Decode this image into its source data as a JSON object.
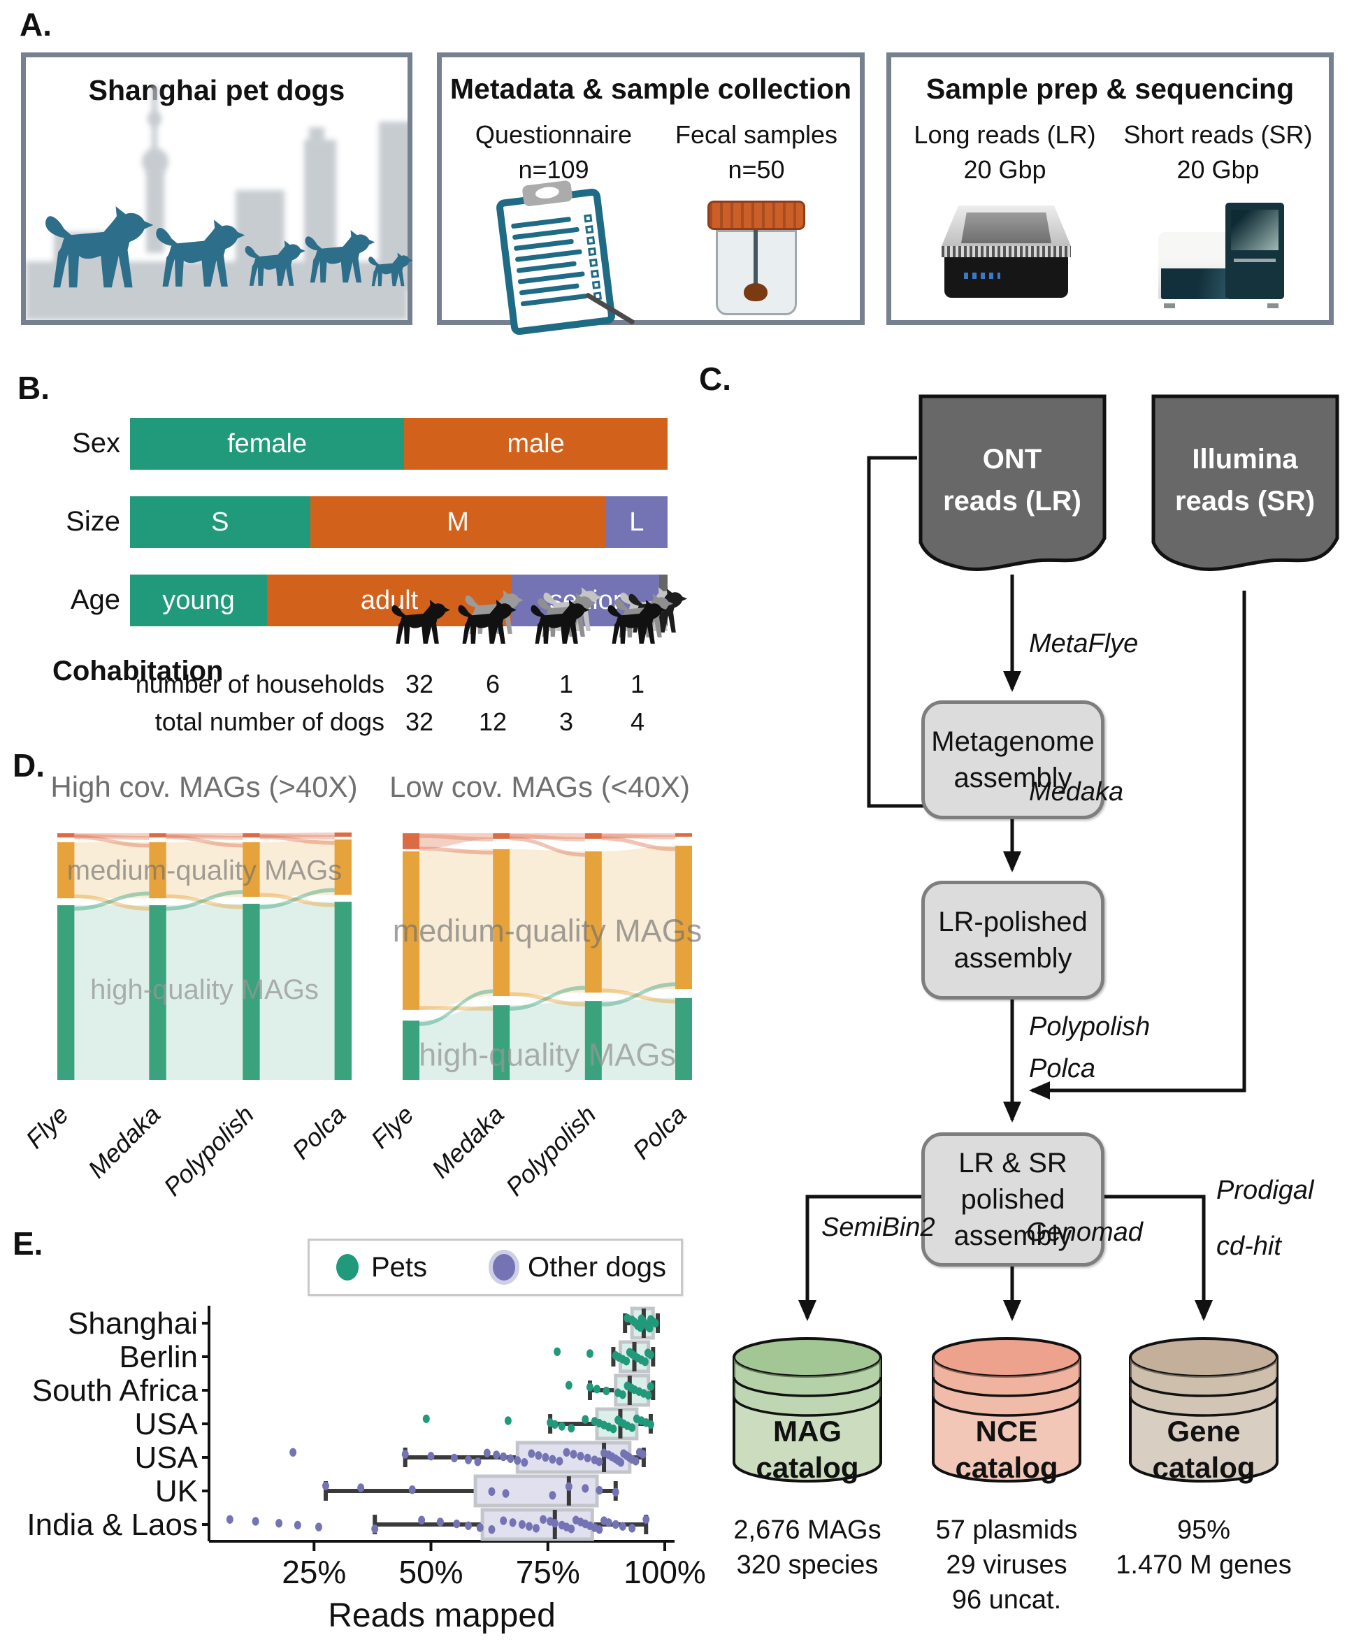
{
  "panel_labels": {
    "a": "A.",
    "b": "B.",
    "c": "C.",
    "d": "D.",
    "e": "E."
  },
  "colors": {
    "green": "#21997B",
    "orange": "#D2611B",
    "purple": "#7473B4",
    "darkgray": "#666666",
    "panel_border": "#76818F",
    "dog_teal": "#2D6E8A",
    "alluvial_gold": "#E7A33B",
    "alluvial_green": "#3AA27C",
    "alluvial_red": "#DC6A43",
    "box_border_gray": "#C2C6CA",
    "whisker_dark": "#3A3A3A",
    "flow_node_fill": "#DCDCDC",
    "doc_fill": "#686868"
  },
  "panelA": {
    "box1": {
      "title": "Shanghai pet dogs"
    },
    "box2": {
      "title": "Metadata & sample collection",
      "items": [
        {
          "label": "Questionnaire",
          "value": "n=109"
        },
        {
          "label": "Fecal samples",
          "value": "n=50"
        }
      ]
    },
    "box3": {
      "title": "Sample prep & sequencing",
      "items": [
        {
          "label": "Long reads (LR)",
          "value": "20 Gbp"
        },
        {
          "label": "Short reads (SR)",
          "value": "20 Gbp"
        }
      ]
    }
  },
  "panelB": {
    "cohabitation": {
      "title": "Cohabitation",
      "row1_label": "number of households",
      "row1_values": [
        "32",
        "6",
        "1",
        "1"
      ],
      "row2_label": "total number of dogs",
      "row2_values": [
        "32",
        "12",
        "3",
        "4"
      ]
    }
  },
  "panelC": {
    "input1": {
      "line1": "ONT",
      "line2": "reads (LR)"
    },
    "input2": {
      "line1": "Illumina",
      "line2": "reads (SR)"
    },
    "node1": {
      "line1": "Metagenome",
      "line2": "assembly"
    },
    "node2": {
      "line1": "LR-polished",
      "line2": "assembly"
    },
    "node3": {
      "line1": "LR & SR",
      "line2": "polished",
      "line3": "assembly"
    },
    "tool_metaflye": "MetaFlye",
    "tool_medaka": "Medaka",
    "tool_polypolish": "Polypolish",
    "tool_polca": "Polca",
    "tool_semibin": "SemiBin2",
    "tool_genomad": "Genomad",
    "tool_prodigal": "Prodigal",
    "tool_cdhit": "cd-hit",
    "catalogs": [
      {
        "line1": "MAG",
        "line2": "catalog",
        "stat1": "2,676 MAGs",
        "stat2": "320 species",
        "stat3": "",
        "body_color": "#CBDDBE",
        "top_color": "#A3C794"
      },
      {
        "line1": "NCE",
        "line2": "catalog",
        "stat1": "57 plasmids",
        "stat2": "29 viruses",
        "stat3": "96 uncat.",
        "body_color": "#F2C7B7",
        "top_color": "#ECA28C"
      },
      {
        "line1": "Gene",
        "line2": "catalog",
        "stat1": "95%",
        "stat2": "1.470 M genes",
        "stat3": "",
        "body_color": "#D9CEC2",
        "top_color": "#C4B09A"
      }
    ]
  },
  "chart_data": [
    {
      "type": "bar",
      "name": "dog-demographics",
      "orientation": "horizontal_stacked",
      "unit": "percent of dogs",
      "rows": [
        {
          "label": "Sex",
          "segments": [
            {
              "label": "female",
              "value": 51,
              "color_key": "green"
            },
            {
              "label": "male",
              "value": 49,
              "color_key": "orange"
            }
          ]
        },
        {
          "label": "Size",
          "segments": [
            {
              "label": "S",
              "value": 33.5,
              "color_key": "green"
            },
            {
              "label": "M",
              "value": 55,
              "color_key": "orange"
            },
            {
              "label": "L",
              "value": 11.5,
              "color_key": "purple"
            }
          ]
        },
        {
          "label": "Age",
          "segments": [
            {
              "label": "young",
              "value": 25.5,
              "color_key": "green"
            },
            {
              "label": "adult",
              "value": 45.5,
              "color_key": "orange"
            },
            {
              "label": "senior",
              "value": 27.5,
              "color_key": "purple"
            },
            {
              "label": "",
              "value": 1.5,
              "color_key": "darkgray"
            }
          ]
        }
      ]
    },
    {
      "type": "area",
      "name": "mag-quality-alluvial-high-coverage",
      "title": "High cov. MAGs (>40X)",
      "stages": [
        "Flye",
        "Medaka",
        "Polypolish",
        "Polca"
      ],
      "band_labels": {
        "medium": "medium-quality MAGs",
        "high": "high-quality MAGs"
      },
      "bands": {
        "failed": [
          [
            0.006,
            0.023
          ],
          [
            0.006,
            0.023
          ],
          [
            0.006,
            0.023
          ],
          [
            0.003,
            0.02
          ]
        ],
        "medium": [
          [
            0.042,
            0.268
          ],
          [
            0.042,
            0.268
          ],
          [
            0.042,
            0.262
          ],
          [
            0.031,
            0.254
          ]
        ],
        "high": [
          [
            0.296,
            1.0
          ],
          [
            0.296,
            1.0
          ],
          [
            0.29,
            1.0
          ],
          [
            0.282,
            1.0
          ]
        ]
      },
      "label_y": {
        "medium": 0.155,
        "high": 0.635
      },
      "label_font": 40
    },
    {
      "type": "area",
      "name": "mag-quality-alluvial-low-coverage",
      "title": "Low cov. MAGs (<40X)",
      "stages": [
        "Flye",
        "Medaka",
        "Polypolish",
        "Polca"
      ],
      "band_labels": {
        "medium": "medium-quality MAGs",
        "high": "high-quality MAGs"
      },
      "bands": {
        "failed": [
          [
            0.006,
            0.07
          ],
          [
            0.006,
            0.028
          ],
          [
            0.006,
            0.028
          ],
          [
            0.006,
            0.02
          ]
        ],
        "medium": [
          [
            0.079,
            0.718
          ],
          [
            0.07,
            0.662
          ],
          [
            0.079,
            0.648
          ],
          [
            0.056,
            0.634
          ]
        ],
        "high": [
          [
            0.761,
            1.0
          ],
          [
            0.699,
            1.0
          ],
          [
            0.682,
            1.0
          ],
          [
            0.67,
            1.0
          ]
        ]
      },
      "label_y": {
        "medium": 0.4,
        "high": 0.9
      },
      "label_font": 45
    },
    {
      "type": "scatter",
      "name": "reads-mapped-boxplot",
      "xlabel": "Reads mapped",
      "xlim": [
        0,
        105
      ],
      "xticks": [
        {
          "label": "25%",
          "value": 25
        },
        {
          "label": "50%",
          "value": 50
        },
        {
          "label": "75%",
          "value": 75
        },
        {
          "label": "100%",
          "value": 100
        }
      ],
      "legend": [
        {
          "label": "Pets",
          "color_key": "green"
        },
        {
          "label": "Other dogs",
          "color_key": "purple"
        }
      ],
      "rows": [
        {
          "label": "Shanghai",
          "group": "green",
          "box": {
            "q1": 93,
            "median": 95.5,
            "q3": 97.5,
            "lo": 91.5,
            "hi": 98.5
          },
          "points": [
            92,
            93,
            93.5,
            94,
            94.2,
            94.8,
            95,
            95.3,
            95.6,
            96,
            96.3,
            96.8,
            97,
            97.4,
            98
          ]
        },
        {
          "label": "Berlin",
          "group": "green",
          "box": {
            "q1": 90.5,
            "median": 93.5,
            "q3": 96.5,
            "lo": 89,
            "hi": 97.5
          },
          "points": [
            77,
            84,
            89.5,
            90.2,
            91,
            91.8,
            92.5,
            93,
            93.6,
            94.2,
            95,
            95.8,
            96.4,
            97
          ]
        },
        {
          "label": "South Africa",
          "group": "green",
          "box": {
            "q1": 89.5,
            "median": 92.5,
            "q3": 96.5,
            "lo": 84,
            "hi": 97.5
          },
          "points": [
            79.5,
            84,
            85.5,
            87.5,
            90,
            91,
            92,
            92.8,
            93.5,
            94.5,
            95.5,
            96.5,
            97
          ]
        },
        {
          "label": "USA",
          "group": "green",
          "box": {
            "q1": 85.5,
            "median": 90.5,
            "q3": 94,
            "lo": 75.5,
            "hi": 97
          },
          "points": [
            49,
            66.5,
            75.5,
            76.5,
            78,
            80,
            83,
            85,
            86,
            87,
            88,
            89,
            90,
            90.5,
            91.2,
            92,
            93,
            94,
            95,
            96,
            97
          ]
        },
        {
          "label": "USA",
          "group": "purple",
          "box": {
            "q1": 68.5,
            "median": 87,
            "q3": 92.5,
            "lo": 44.5,
            "hi": 95.5
          },
          "points": [
            20.5,
            44.5,
            50,
            55,
            58,
            60,
            62,
            64,
            65.5,
            67,
            68.5,
            70,
            71.5,
            73,
            74.5,
            76,
            77.5,
            79,
            80.5,
            82,
            83.5,
            85,
            86,
            87,
            88,
            88.7,
            89.4,
            90,
            90.6,
            91.2,
            91.8,
            92.4,
            93,
            93.8,
            94.6,
            95.3
          ]
        },
        {
          "label": "UK",
          "group": "purple",
          "box": {
            "q1": 59.5,
            "median": 79.5,
            "q3": 85.5,
            "lo": 27.5,
            "hi": 89.5
          },
          "points": [
            27.5,
            35,
            46,
            63,
            66,
            76,
            79.5,
            83,
            86,
            89.5
          ]
        },
        {
          "label": "India & Laos",
          "group": "purple",
          "box": {
            "q1": 61,
            "median": 76.5,
            "q3": 84.5,
            "lo": 38,
            "hi": 96
          },
          "points": [
            7,
            12.5,
            17.5,
            21.5,
            26,
            38,
            48,
            52,
            55.5,
            58,
            60.5,
            63,
            65.5,
            67.5,
            69.5,
            71,
            72.5,
            74,
            75.5,
            76.5,
            78,
            79,
            80,
            81,
            82,
            83,
            84,
            85,
            86,
            87,
            88,
            89.5,
            91,
            93,
            96
          ]
        }
      ]
    }
  ]
}
